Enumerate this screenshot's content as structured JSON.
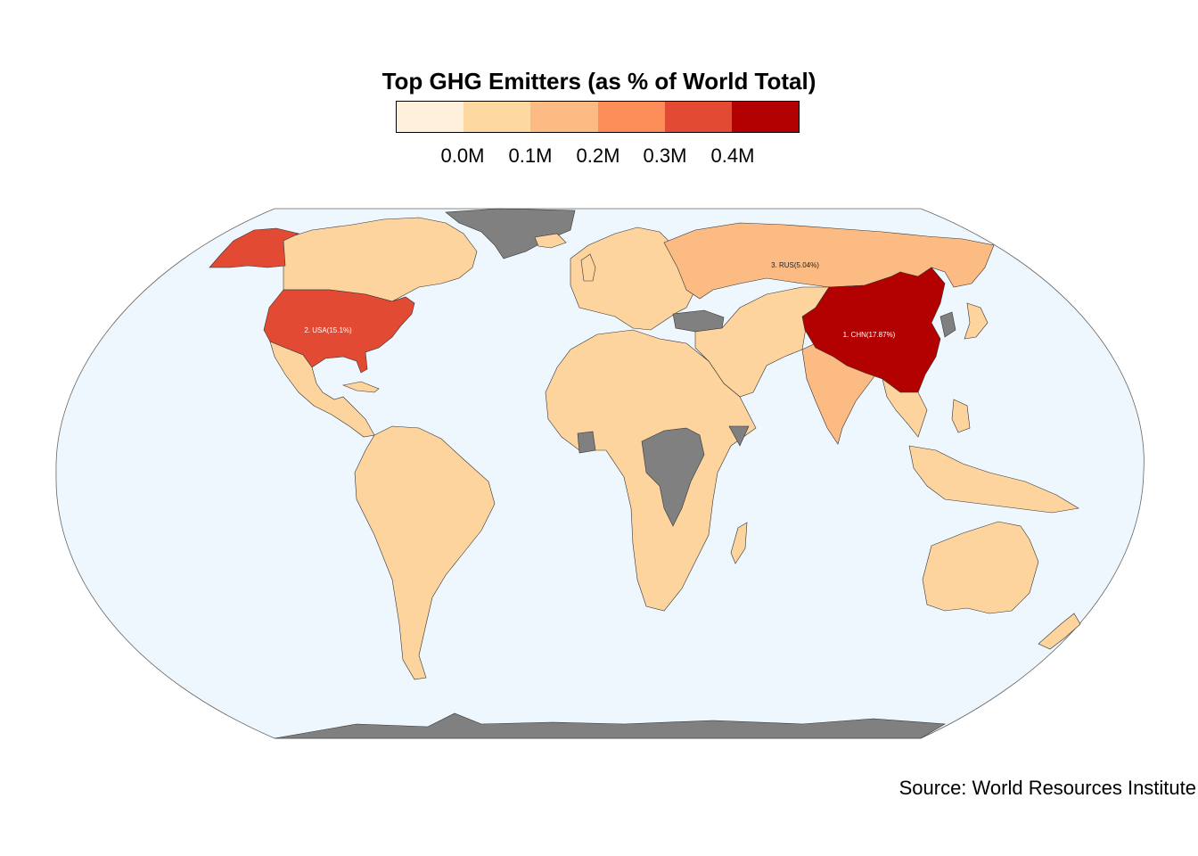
{
  "title": "Top GHG Emitters (as % of World Total)",
  "legend": {
    "colors": [
      "#fff0dc",
      "#fdd8a0",
      "#fdbb84",
      "#fc8d59",
      "#e34a33",
      "#b30000"
    ],
    "tick_labels": [
      "0.0M",
      "0.1M",
      "0.2M",
      "0.3M",
      "0.4M"
    ]
  },
  "colors": {
    "ocean": "#eef7fd",
    "default_land": "#fdd49e",
    "no_data": "#808080",
    "border": "#333333"
  },
  "map_labels": {
    "chn": "1. CHN(17.87%)",
    "usa": "2. USA(15.1%)",
    "rus": "3. RUS(5.04%)"
  },
  "countries": {
    "china": {
      "code": "CHN",
      "share_pct": 17.87,
      "color": "#b30000"
    },
    "usa": {
      "code": "USA",
      "share_pct": 15.1,
      "color": "#e34a33"
    },
    "russia": {
      "code": "RUS",
      "share_pct": 5.04,
      "color": "#fdbb84"
    },
    "india": {
      "color": "#fdbb84"
    },
    "greenland": {
      "color": "#808080"
    },
    "central_africa": {
      "color": "#808080"
    },
    "antarctica": {
      "color": "#808080"
    }
  },
  "source": "Source: World Resources Institute"
}
